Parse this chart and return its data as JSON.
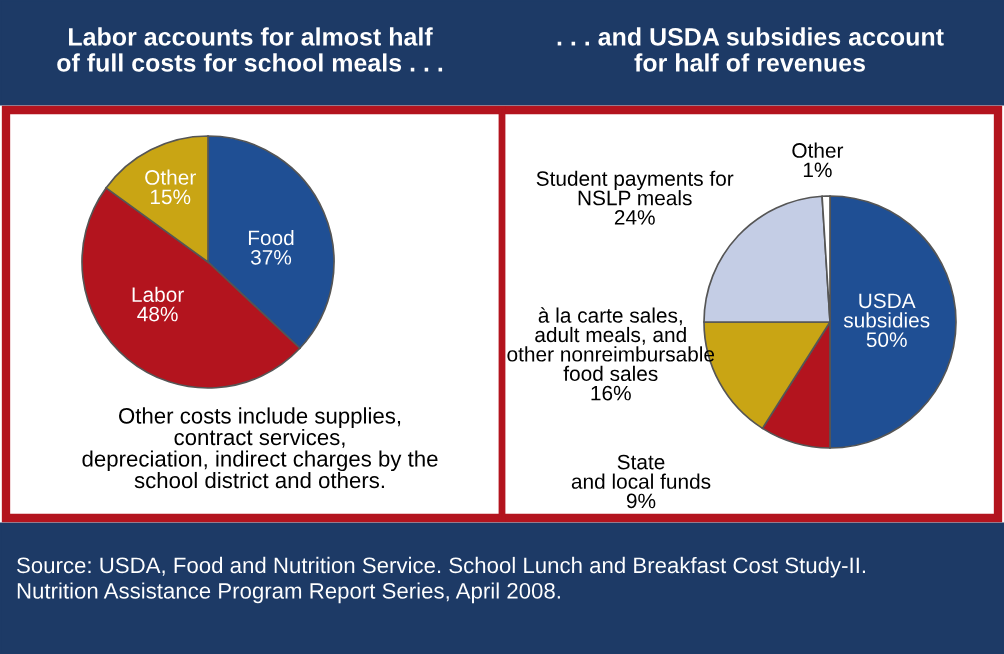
{
  "chart_data": [
    {
      "type": "pie",
      "title": "Labor accounts for almost half\nof full costs for school meals . . .",
      "categories": [
        "Food",
        "Labor",
        "Other"
      ],
      "values": [
        37,
        48,
        15
      ],
      "value_labels": [
        "37%",
        "48%",
        "15%"
      ],
      "colors": [
        "#1f4f94",
        "#b3141e",
        "#c9a514"
      ],
      "annotations": [
        "Other costs include supplies,\ncontract services,\ndepreciation, indirect charges by the\nschool district and others."
      ]
    },
    {
      "type": "pie",
      "title": ". . . and USDA subsidies account\nfor half of revenues",
      "categories": [
        "USDA\nsubsidies",
        "State\nand local funds",
        "à la carte sales,\nadult meals, and\nother nonreimbursable\nfood sales",
        "Student payments for\nNSLP meals",
        "Other"
      ],
      "values": [
        50,
        9,
        16,
        24,
        1
      ],
      "value_labels": [
        "50%",
        "9%",
        "16%",
        "24%",
        "1%"
      ],
      "colors": [
        "#1f4f94",
        "#b3141e",
        "#c9a514",
        "#c4cde5",
        "#ffffff"
      ],
      "annotations": [
        "Source: USDA, Food and Nutrition Service. School Lunch and Breakfast Cost Study-II.\nNutrition Assistance Program Report Series, April 2008."
      ]
    }
  ]
}
